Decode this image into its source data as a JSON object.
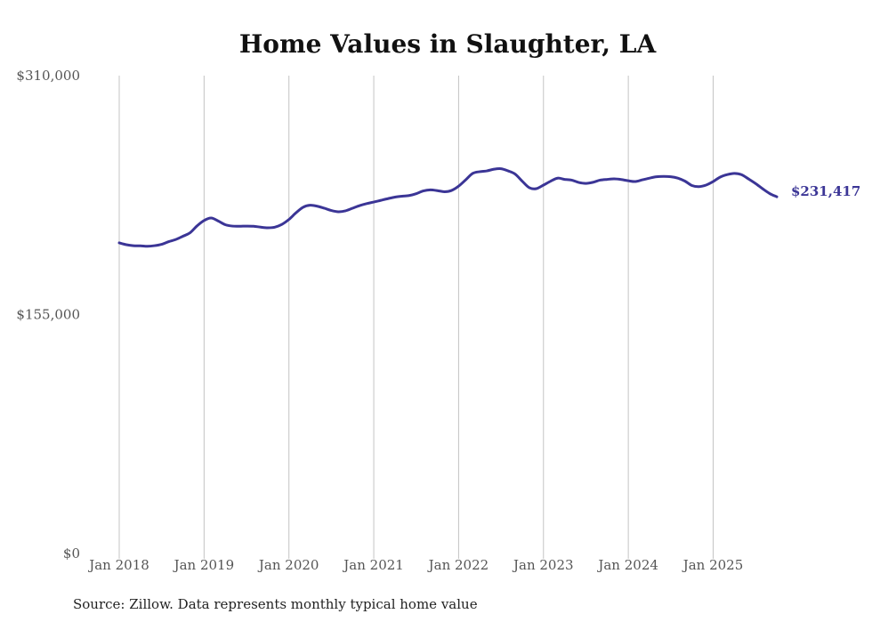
{
  "chart_data": {
    "type": "line",
    "title": "Home Values in Slaughter, LA",
    "xlabel": "",
    "ylabel": "",
    "source": "Source: Zillow. Data represents monthly typical home value",
    "ylim": [
      0,
      310000
    ],
    "y_ticks": [
      {
        "value": 310000,
        "label": "$310,000"
      },
      {
        "value": 155000,
        "label": "$155,000"
      },
      {
        "value": 0,
        "label": "$0"
      }
    ],
    "x_ticks": [
      {
        "month_index": 0,
        "label": "Jan 2018"
      },
      {
        "month_index": 12,
        "label": "Jan 2019"
      },
      {
        "month_index": 24,
        "label": "Jan 2020"
      },
      {
        "month_index": 36,
        "label": "Jan 2021"
      },
      {
        "month_index": 48,
        "label": "Jan 2022"
      },
      {
        "month_index": 60,
        "label": "Jan 2023"
      },
      {
        "month_index": 72,
        "label": "Jan 2024"
      },
      {
        "month_index": 84,
        "label": "Jan 2025"
      }
    ],
    "x_range_months": [
      0,
      93
    ],
    "grid": "vertical",
    "line_color": "#3b3596",
    "end_label": "$231,417",
    "series": [
      {
        "name": "Typical home value",
        "start": "Jan 2018",
        "frequency": "monthly",
        "values": [
          201500,
          200300,
          199700,
          199600,
          199300,
          199700,
          200600,
          202300,
          203700,
          205800,
          208000,
          212500,
          216000,
          217600,
          215700,
          213300,
          212400,
          212300,
          212400,
          212300,
          211700,
          211300,
          211700,
          213500,
          216700,
          221000,
          224600,
          225900,
          225300,
          224000,
          222500,
          221700,
          222300,
          224000,
          225700,
          227000,
          228000,
          229100,
          230200,
          231200,
          231800,
          232200,
          233400,
          235200,
          235900,
          235400,
          234700,
          235500,
          238300,
          242400,
          246600,
          247700,
          248200,
          249300,
          249600,
          248200,
          246100,
          241500,
          237300,
          236700,
          239000,
          241500,
          243500,
          242700,
          242200,
          240700,
          240100,
          240800,
          242200,
          242700,
          243000,
          242600,
          241800,
          241300,
          242400,
          243500,
          244400,
          244600,
          244400,
          243500,
          241600,
          238700,
          238000,
          239000,
          241300,
          244200,
          245800,
          246600,
          245800,
          243000,
          240000,
          236600,
          233500,
          231417
        ]
      }
    ]
  }
}
